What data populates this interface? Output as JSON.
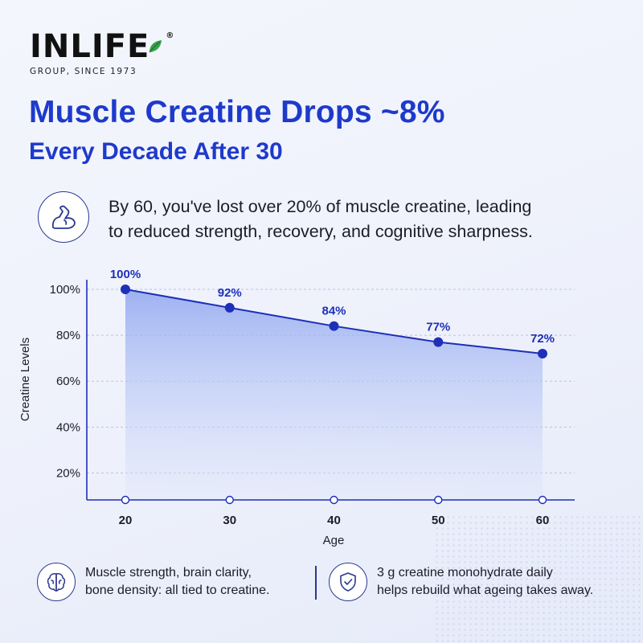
{
  "brand": {
    "name": "INLIFE",
    "registered": "®",
    "tagline": "GROUP, SINCE 1973"
  },
  "headline": {
    "line1": "Muscle Creatine Drops ~8%",
    "line2": "Every Decade After 30"
  },
  "intro": {
    "icon": "flexed-arm-icon",
    "line1": "By 60, you've lost over 20% of muscle creatine, leading",
    "line2": "to reduced strength, recovery, and cognitive sharpness."
  },
  "chart_data": {
    "type": "area",
    "x": [
      20,
      30,
      40,
      50,
      60
    ],
    "values": [
      100,
      92,
      84,
      77,
      72
    ],
    "data_labels": [
      "100%",
      "92%",
      "84%",
      "77%",
      "72%"
    ],
    "xlabel": "Age",
    "ylabel": "Creatine Levels",
    "yticks": [
      20,
      40,
      60,
      80,
      100
    ],
    "ytick_labels": [
      "20%",
      "40%",
      "60%",
      "80%",
      "100%"
    ],
    "xtick_labels": [
      "20",
      "30",
      "40",
      "50",
      "60"
    ],
    "ylim": [
      10,
      100
    ],
    "grid": "horizontal dashed",
    "line_color": "#1e2fb8",
    "fill_color": "#8fa6f0"
  },
  "footer": {
    "left": {
      "icon": "brain-icon",
      "line1": "Muscle strength, brain clarity,",
      "line2": "bone density: all tied to creatine."
    },
    "right": {
      "icon": "shield-check-icon",
      "line1": "3 g creatine monohydrate daily",
      "line2": "helps rebuild what ageing takes away."
    }
  }
}
